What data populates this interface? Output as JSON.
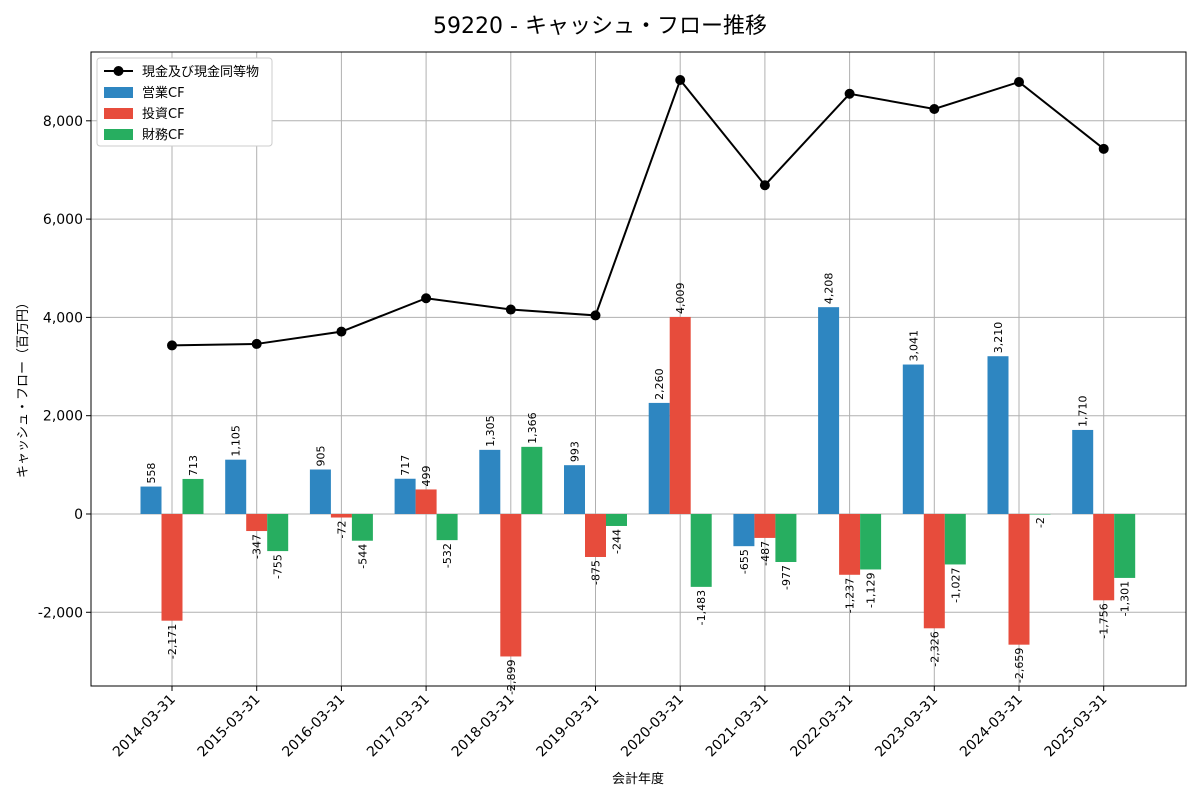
{
  "chart_data": {
    "type": "bar",
    "title": "59220 - キャッシュ・フロー推移",
    "xlabel": "会計年度",
    "ylabel": "キャッシュ・フロー（百万円）",
    "categories": [
      "2014-03-31",
      "2015-03-31",
      "2016-03-31",
      "2017-03-31",
      "2018-03-31",
      "2019-03-31",
      "2020-03-31",
      "2021-03-31",
      "2022-03-31",
      "2023-03-31",
      "2024-03-31",
      "2025-03-31"
    ],
    "series": [
      {
        "name": "営業CF",
        "type": "bar",
        "color": "#2e86c1",
        "values": [
          558,
          1105,
          905,
          717,
          1305,
          993,
          2260,
          -655,
          4208,
          3041,
          3210,
          1710
        ],
        "labels": [
          "558",
          "1,105",
          "905",
          "717",
          "1,305",
          "993",
          "2,260",
          "-655",
          "4,208",
          "3,041",
          "3,210",
          "1,710"
        ]
      },
      {
        "name": "投資CF",
        "type": "bar",
        "color": "#e74c3c",
        "values": [
          -2171,
          -347,
          -72,
          499,
          -2899,
          -875,
          4009,
          -487,
          -1237,
          -2326,
          -2659,
          -1756
        ],
        "labels": [
          "-2,171",
          "-347",
          "-72",
          "499",
          "-2,899",
          "-875",
          "4,009",
          "-487",
          "-1,237",
          "-2,326",
          "-2,659",
          "-1,756"
        ]
      },
      {
        "name": "財務CF",
        "type": "bar",
        "color": "#27ae60",
        "values": [
          713,
          -755,
          -544,
          -532,
          1366,
          -244,
          -1483,
          -977,
          -1129,
          -1027,
          -2,
          -1301
        ],
        "labels": [
          "713",
          "-755",
          "-544",
          "-532",
          "1,366",
          "-244",
          "-1,483",
          "-977",
          "-1,129",
          "-1,027",
          "-2",
          "-1,301"
        ]
      },
      {
        "name": "現金及び現金同等物",
        "type": "line",
        "color": "#000000",
        "values": [
          3430,
          3460,
          3710,
          4390,
          4160,
          4040,
          8830,
          6690,
          8550,
          8240,
          8790,
          7430
        ]
      }
    ],
    "ylim": [
      -3500,
      9400
    ],
    "yticks": [
      -2000,
      0,
      2000,
      4000,
      6000,
      8000
    ],
    "ytick_labels": [
      "-2,000",
      "0",
      "2,000",
      "4,000",
      "6,000",
      "8,000"
    ],
    "grid": true,
    "legend_position": "top-left",
    "legend_order": [
      "現金及び現金同等物",
      "営業CF",
      "投資CF",
      "財務CF"
    ]
  }
}
